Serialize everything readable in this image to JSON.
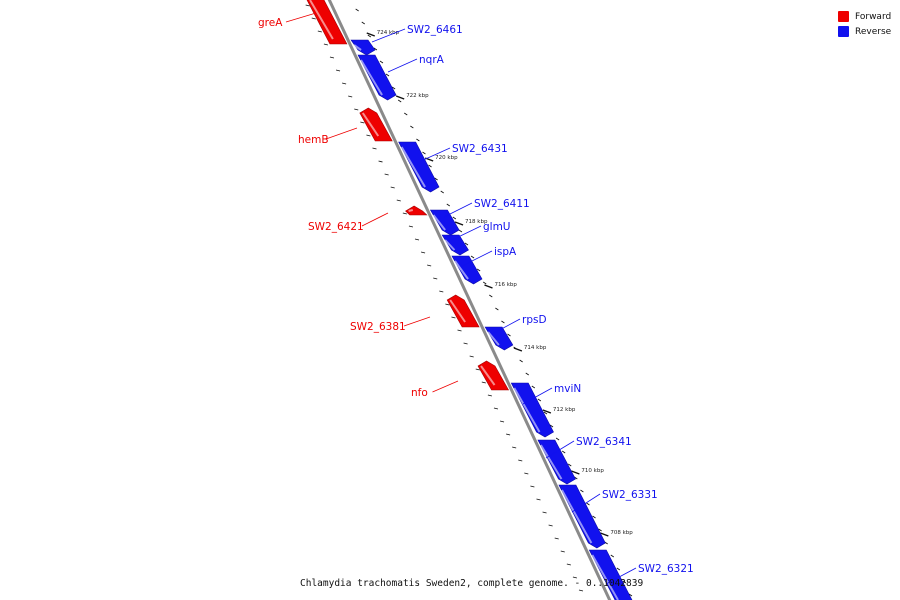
{
  "caption": "Chlamydia trachomatis Sweden2, complete genome. - 0..1042839",
  "legend": [
    {
      "label": "Forward",
      "color": "#ee0000"
    },
    {
      "label": "Reverse",
      "color": "#1111ee"
    }
  ],
  "axis": {
    "line_color": "#8a8a8a",
    "tick_color": "#111111"
  },
  "genes": [
    {
      "name": "greA",
      "strand": "forward"
    },
    {
      "name": "SW2_6461",
      "strand": "reverse"
    },
    {
      "name": "nqrA",
      "strand": "reverse"
    },
    {
      "name": "hemB",
      "strand": "forward"
    },
    {
      "name": "SW2_6431",
      "strand": "reverse"
    },
    {
      "name": "SW2_6411",
      "strand": "reverse"
    },
    {
      "name": "SW2_6421",
      "strand": "forward"
    },
    {
      "name": "glmU",
      "strand": "reverse"
    },
    {
      "name": "ispA",
      "strand": "reverse"
    },
    {
      "name": "SW2_6381",
      "strand": "forward"
    },
    {
      "name": "rpsD",
      "strand": "reverse"
    },
    {
      "name": "nfo",
      "strand": "forward"
    },
    {
      "name": "mviN",
      "strand": "reverse"
    },
    {
      "name": "SW2_6341",
      "strand": "reverse"
    },
    {
      "name": "SW2_6331",
      "strand": "reverse"
    },
    {
      "name": "SW2_6321",
      "strand": "reverse"
    }
  ],
  "tick_labels": [
    "724 kbp",
    "722 kbp",
    "720 kbp",
    "718 kbp",
    "716 kbp",
    "714 kbp",
    "712 kbp",
    "710 kbp",
    "708 kbp"
  ]
}
